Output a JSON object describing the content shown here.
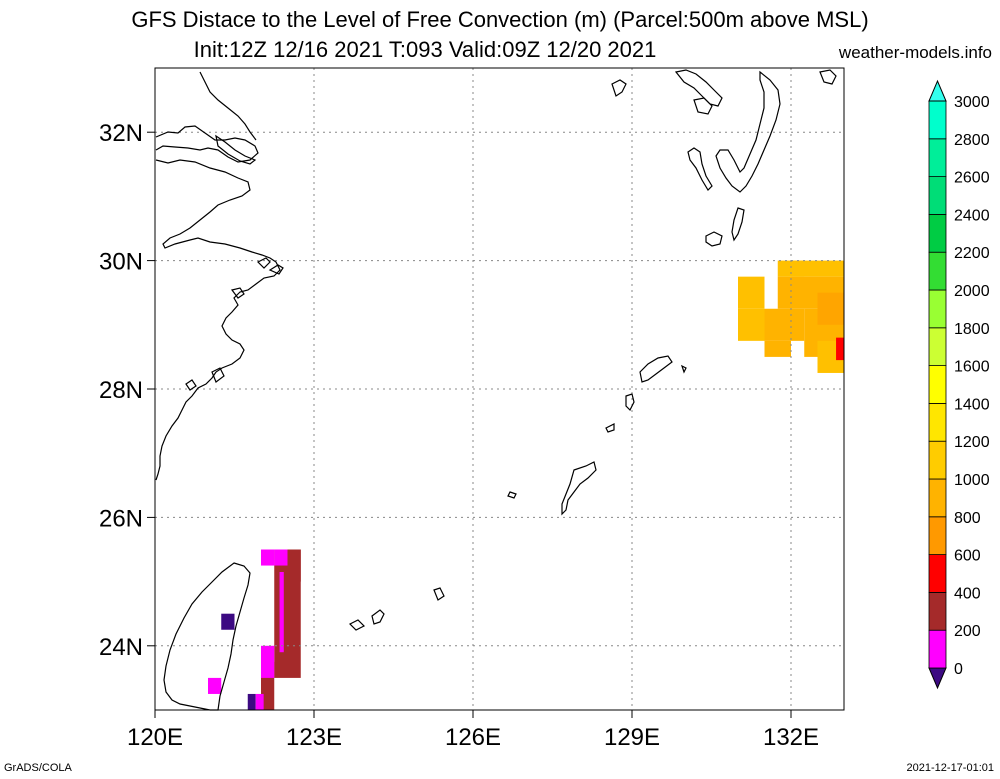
{
  "title_line1": "GFS Distace to the Level of Free Convection (m) (Parcel:500m above MSL)",
  "title_line2": "Init:12Z 12/16 2021 T:093 Valid:09Z 12/20 2021",
  "website": "weather-models.info",
  "footer_left": "GrADS/COLA",
  "footer_right": "2021-12-17-01:01",
  "chart_data": {
    "type": "heatmap",
    "x_ticks": [
      "120E",
      "123E",
      "126E",
      "129E",
      "132E"
    ],
    "y_ticks": [
      "24N",
      "26N",
      "28N",
      "30N",
      "32N"
    ],
    "xlim": [
      120,
      133
    ],
    "ylim": [
      23,
      33
    ],
    "grid": true,
    "colorbar": {
      "labels": [
        "0",
        "200",
        "400",
        "600",
        "800",
        "1000",
        "1200",
        "1400",
        "1600",
        "1800",
        "2000",
        "2200",
        "2400",
        "2600",
        "2800",
        "3000"
      ],
      "colors": [
        "#3c0a82",
        "#ff00ff",
        "#a52a2a",
        "#ff0000",
        "#ff9900",
        "#ffb300",
        "#ffcc00",
        "#ffe600",
        "#ffff00",
        "#ccff33",
        "#99ff33",
        "#33dd33",
        "#00cc44",
        "#00dd77",
        "#00ee99",
        "#00ffcc",
        "#33ffee"
      ]
    },
    "cells": [
      {
        "lon": 131.0,
        "lat": 28.75,
        "w": 0.5,
        "h": 0.5,
        "color": "#ffc000"
      },
      {
        "lon": 131.0,
        "lat": 29.25,
        "w": 0.5,
        "h": 0.5,
        "color": "#ffc000"
      },
      {
        "lon": 131.5,
        "lat": 28.5,
        "w": 0.5,
        "h": 0.25,
        "color": "#ffb300"
      },
      {
        "lon": 131.5,
        "lat": 28.75,
        "w": 0.75,
        "h": 0.5,
        "color": "#ffb300"
      },
      {
        "lon": 131.75,
        "lat": 29.25,
        "w": 1.25,
        "h": 0.5,
        "color": "#ffb300"
      },
      {
        "lon": 131.75,
        "lat": 29.75,
        "w": 1.25,
        "h": 0.25,
        "color": "#ffc000"
      },
      {
        "lon": 132.0,
        "lat": 29.75,
        "w": 0.25,
        "h": 0.25,
        "color": "#ffc000"
      },
      {
        "lon": 132.25,
        "lat": 28.5,
        "w": 0.75,
        "h": 0.75,
        "color": "#ffb300"
      },
      {
        "lon": 132.5,
        "lat": 28.25,
        "w": 0.5,
        "h": 0.5,
        "color": "#ffc000"
      },
      {
        "lon": 132.5,
        "lat": 29.0,
        "w": 0.5,
        "h": 0.5,
        "color": "#ffa500"
      },
      {
        "lon": 132.85,
        "lat": 28.45,
        "w": 0.15,
        "h": 0.35,
        "color": "#ff0000"
      },
      {
        "lon": 122.25,
        "lat": 23.5,
        "w": 0.5,
        "h": 2.0,
        "color": "#a52a2a"
      },
      {
        "lon": 122.5,
        "lat": 25.0,
        "w": 0.25,
        "h": 0.5,
        "color": "#a52a2a"
      },
      {
        "lon": 122.0,
        "lat": 23.0,
        "w": 0.25,
        "h": 0.75,
        "color": "#a52a2a"
      },
      {
        "lon": 122.25,
        "lat": 25.25,
        "w": 0.25,
        "h": 0.25,
        "color": "#ff00ff"
      },
      {
        "lon": 122.35,
        "lat": 23.9,
        "w": 0.08,
        "h": 1.25,
        "color": "#ff00ff"
      },
      {
        "lon": 122.0,
        "lat": 25.25,
        "w": 0.25,
        "h": 0.25,
        "color": "#ff00ff"
      },
      {
        "lon": 122.0,
        "lat": 23.5,
        "w": 0.25,
        "h": 0.5,
        "color": "#ff00ff"
      },
      {
        "lon": 121.0,
        "lat": 23.25,
        "w": 0.25,
        "h": 0.25,
        "color": "#ff00ff"
      },
      {
        "lon": 121.25,
        "lat": 24.25,
        "w": 0.25,
        "h": 0.25,
        "color": "#3c0a82"
      },
      {
        "lon": 121.75,
        "lat": 23.0,
        "w": 0.15,
        "h": 0.25,
        "color": "#3c0a82"
      },
      {
        "lon": 121.9,
        "lat": 23.0,
        "w": 0.15,
        "h": 0.25,
        "color": "#ff00ff"
      }
    ]
  }
}
